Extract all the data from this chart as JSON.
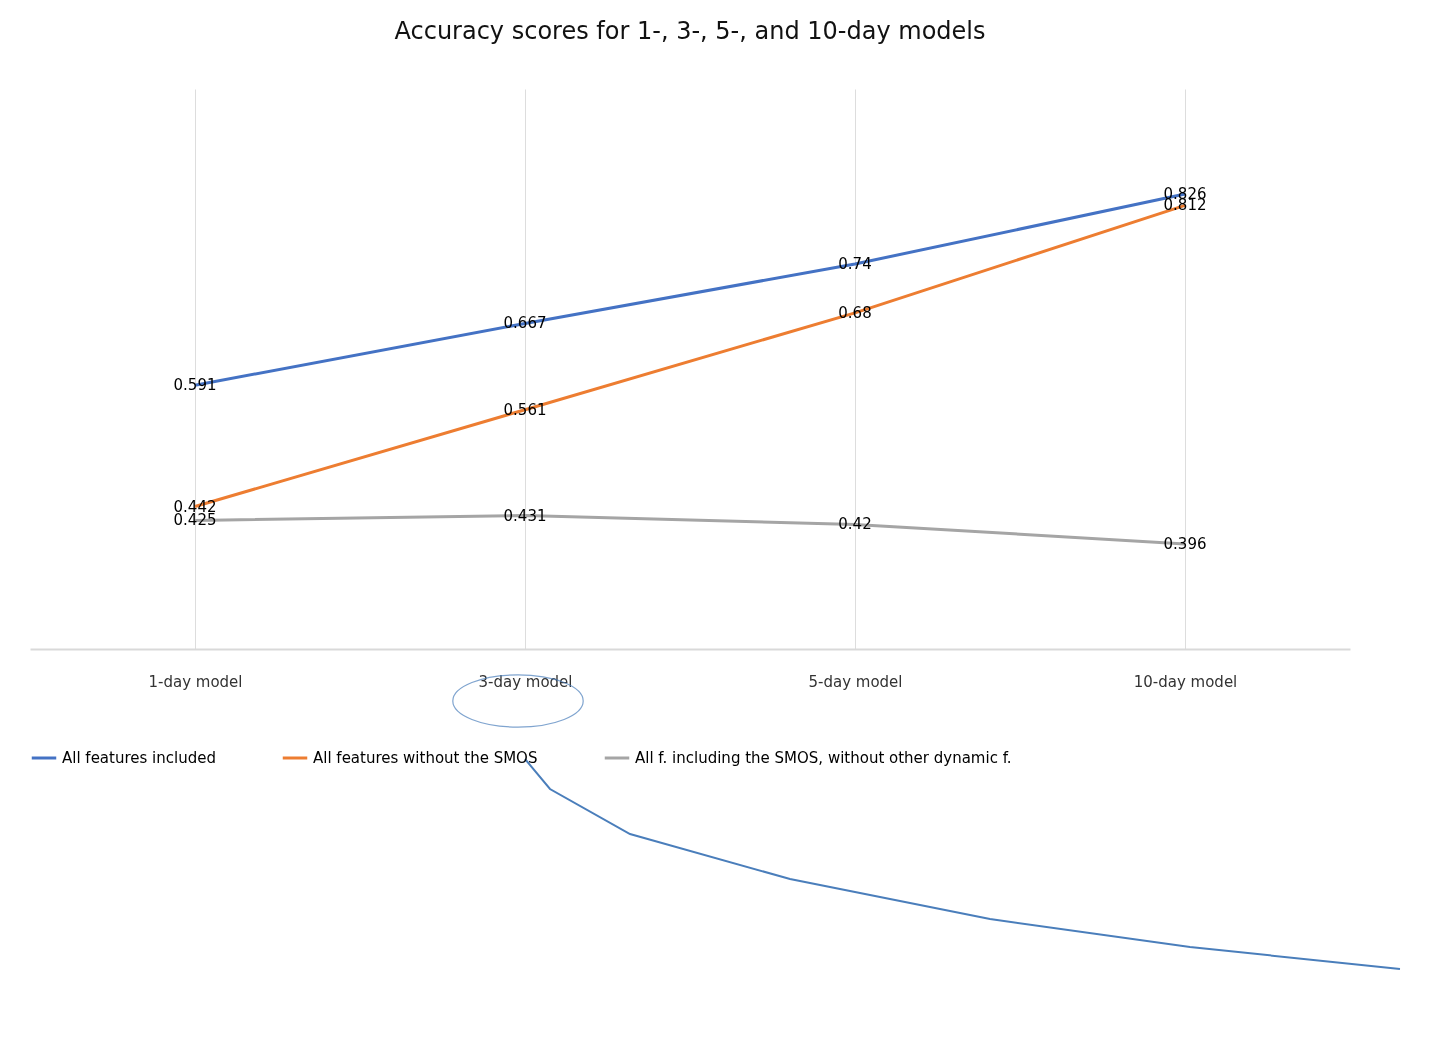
{
  "chart_data": {
    "type": "line",
    "title": "Accuracy scores for 1-, 3-, 5-, and 10-day models",
    "categories": [
      "1-day model",
      "3-day model",
      "5-day model",
      "10-day model"
    ],
    "series": [
      {
        "name": "All features included",
        "color": "#4472c4",
        "values": [
          0.591,
          0.667,
          0.74,
          0.826
        ]
      },
      {
        "name": "All features without the SMOS",
        "color": "#ed7d31",
        "values": [
          0.442,
          0.561,
          0.68,
          0.812
        ]
      },
      {
        "name": "All f. including the SMOS, without other dynamic f.",
        "color": "#a5a5a5",
        "values": [
          0.425,
          0.431,
          0.42,
          0.396
        ]
      }
    ],
    "data_labels": true,
    "grid": "x",
    "legend": "bottom",
    "marker": "none",
    "line_style": "solid"
  }
}
